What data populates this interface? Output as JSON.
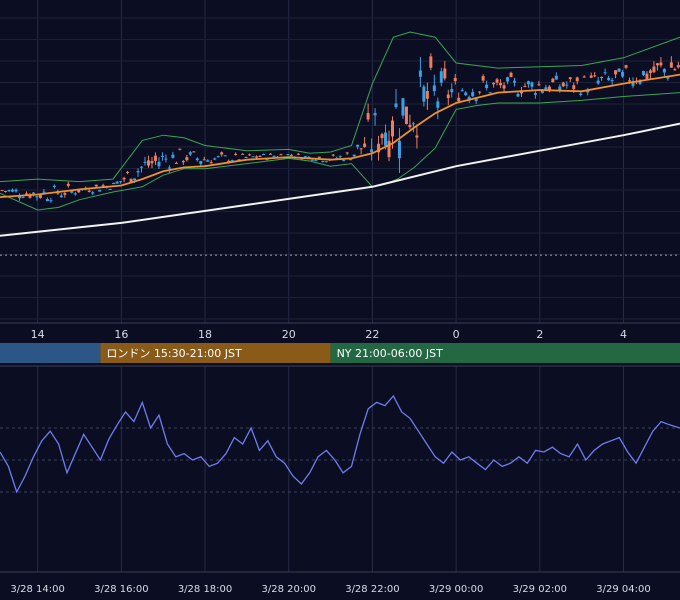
{
  "chart_data": [
    {
      "type": "candlestick",
      "pane": "price",
      "x_axis": {
        "unit": "hour (JST)",
        "tick_labels": [
          "14",
          "16",
          "18",
          "20",
          "22",
          "0",
          "2",
          "4"
        ],
        "tick_hours": [
          14,
          16,
          18,
          20,
          22,
          24,
          26,
          28
        ],
        "range": [
          13.1,
          29.35
        ]
      },
      "y_axis": {
        "range": [
          0,
          100
        ],
        "tick_labels": []
      },
      "grid": true,
      "colors": {
        "up": "#3aa0e8",
        "down": "#ef7e5e",
        "sma_fast": "#f0912a",
        "sma_slow": "#f2f2f2",
        "band": "#3aa655"
      },
      "sma_slow": {
        "x": [
          13.1,
          16.0,
          19.0,
          22.0,
          24.0,
          26.0,
          28.0,
          29.35
        ],
        "y": [
          21.0,
          26.0,
          33.0,
          40.0,
          48.0,
          54.0,
          60.0,
          64.5
        ]
      },
      "sma_fast": {
        "x": [
          13.1,
          14.0,
          15.0,
          16.0,
          16.5,
          17.0,
          17.5,
          18.0,
          19.0,
          20.0,
          21.0,
          21.5,
          22.0,
          22.5,
          23.0,
          23.5,
          24.0,
          25.0,
          26.0,
          27.0,
          28.0,
          29.35
        ],
        "y": [
          36.0,
          37.0,
          39.0,
          40.5,
          43.0,
          46.0,
          47.5,
          48.0,
          50.5,
          51.5,
          50.5,
          51.0,
          53.0,
          57.0,
          63.0,
          68.5,
          72.5,
          76.5,
          77.5,
          77.0,
          80.0,
          83.5
        ]
      },
      "bb_upper": {
        "x": [
          13.1,
          14.0,
          15.0,
          15.8,
          16.5,
          17.0,
          17.5,
          18.0,
          19.0,
          20.0,
          20.5,
          21.0,
          21.5,
          22.0,
          22.5,
          22.9,
          23.5,
          24.0,
          25.0,
          26.0,
          27.0,
          28.0,
          29.35
        ],
        "y": [
          42.0,
          43.0,
          42.0,
          43.0,
          58.0,
          60.0,
          59.0,
          56.0,
          54.0,
          54.5,
          53.0,
          53.5,
          56.0,
          80.0,
          98.0,
          100.0,
          98.0,
          88.0,
          86.0,
          86.5,
          87.0,
          90.0,
          98.0
        ]
      },
      "bb_lower": {
        "x": [
          13.1,
          14.0,
          14.5,
          15.0,
          15.8,
          16.5,
          17.0,
          17.5,
          18.0,
          19.0,
          20.0,
          20.5,
          21.0,
          21.5,
          22.0,
          22.3,
          22.6,
          23.0,
          23.5,
          24.0,
          24.5,
          25.0,
          26.0,
          27.0,
          28.0,
          29.35
        ],
        "y": [
          37.5,
          31.0,
          32.0,
          35.0,
          38.0,
          40.0,
          44.5,
          47.0,
          47.0,
          49.0,
          51.0,
          50.0,
          48.0,
          49.0,
          40.0,
          41.0,
          43.0,
          47.5,
          55.0,
          70.0,
          71.5,
          72.5,
          72.5,
          73.5,
          75.0,
          76.5
        ]
      },
      "reference_lines": [
        {
          "y": 13.5,
          "style": "dotted"
        }
      ]
    },
    {
      "type": "line",
      "pane": "oscillator",
      "x_axis": {
        "unit": "date time",
        "tick_labels": [
          "3/28 14:00",
          "3/28 16:00",
          "3/28 18:00",
          "3/28 20:00",
          "3/28 22:00",
          "3/29 00:00",
          "3/29 02:00",
          "3/29 04:00"
        ],
        "tick_hours": [
          14,
          16,
          18,
          20,
          22,
          24,
          26,
          28
        ],
        "range": [
          13.1,
          29.35
        ]
      },
      "y_axis": {
        "range": [
          0,
          100
        ],
        "gridlines": [
          30,
          50,
          70
        ],
        "tick_labels": []
      },
      "grid": true,
      "colors": {
        "line": "#6f7cf0"
      },
      "series": [
        {
          "x": [
            13.1,
            13.3,
            13.5,
            13.7,
            13.9,
            14.1,
            14.3,
            14.5,
            14.7,
            14.9,
            15.1,
            15.3,
            15.5,
            15.7,
            15.9,
            16.1,
            16.3,
            16.5,
            16.7,
            16.9,
            17.1,
            17.3,
            17.5,
            17.7,
            17.9,
            18.1,
            18.3,
            18.5,
            18.7,
            18.9,
            19.1,
            19.3,
            19.5,
            19.7,
            19.9,
            20.1,
            20.3,
            20.5,
            20.7,
            20.9,
            21.1,
            21.3,
            21.5,
            21.7,
            21.9,
            22.1,
            22.3,
            22.5,
            22.7,
            22.9,
            23.1,
            23.3,
            23.5,
            23.7,
            23.9,
            24.1,
            24.3,
            24.5,
            24.7,
            24.9,
            25.1,
            25.3,
            25.5,
            25.7,
            25.9,
            26.1,
            26.3,
            26.5,
            26.7,
            26.9,
            27.1,
            27.3,
            27.5,
            27.7,
            27.9,
            28.1,
            28.3,
            28.5,
            28.7,
            28.9,
            29.1,
            29.35
          ],
          "y": [
            55,
            46,
            30,
            40,
            52,
            62,
            68,
            60,
            42,
            54,
            66,
            58,
            50,
            63,
            72,
            80,
            74,
            86,
            70,
            78,
            60,
            52,
            54,
            50,
            52,
            46,
            48,
            54,
            64,
            60,
            70,
            56,
            62,
            52,
            48,
            40,
            35,
            42,
            52,
            56,
            50,
            42,
            46,
            66,
            82,
            86,
            84,
            90,
            80,
            76,
            68,
            60,
            52,
            48,
            55,
            50,
            52,
            48,
            44,
            50,
            46,
            48,
            52,
            48,
            56,
            55,
            58,
            54,
            52,
            60,
            50,
            56,
            60,
            62,
            64,
            55,
            48,
            58,
            68,
            74,
            72,
            70
          ]
        }
      ]
    }
  ],
  "sessions": [
    {
      "label": "",
      "color": "#2b5686",
      "start_hour": 13.1,
      "end_hour": 15.5
    },
    {
      "label": "ロンドン 15:30-21:00 JST",
      "color": "#8a5b18",
      "start_hour": 15.5,
      "end_hour": 21.0
    },
    {
      "label": "NY 21:00-06:00 JST",
      "color": "#236843",
      "start_hour": 21.0,
      "end_hour": 29.35
    }
  ]
}
